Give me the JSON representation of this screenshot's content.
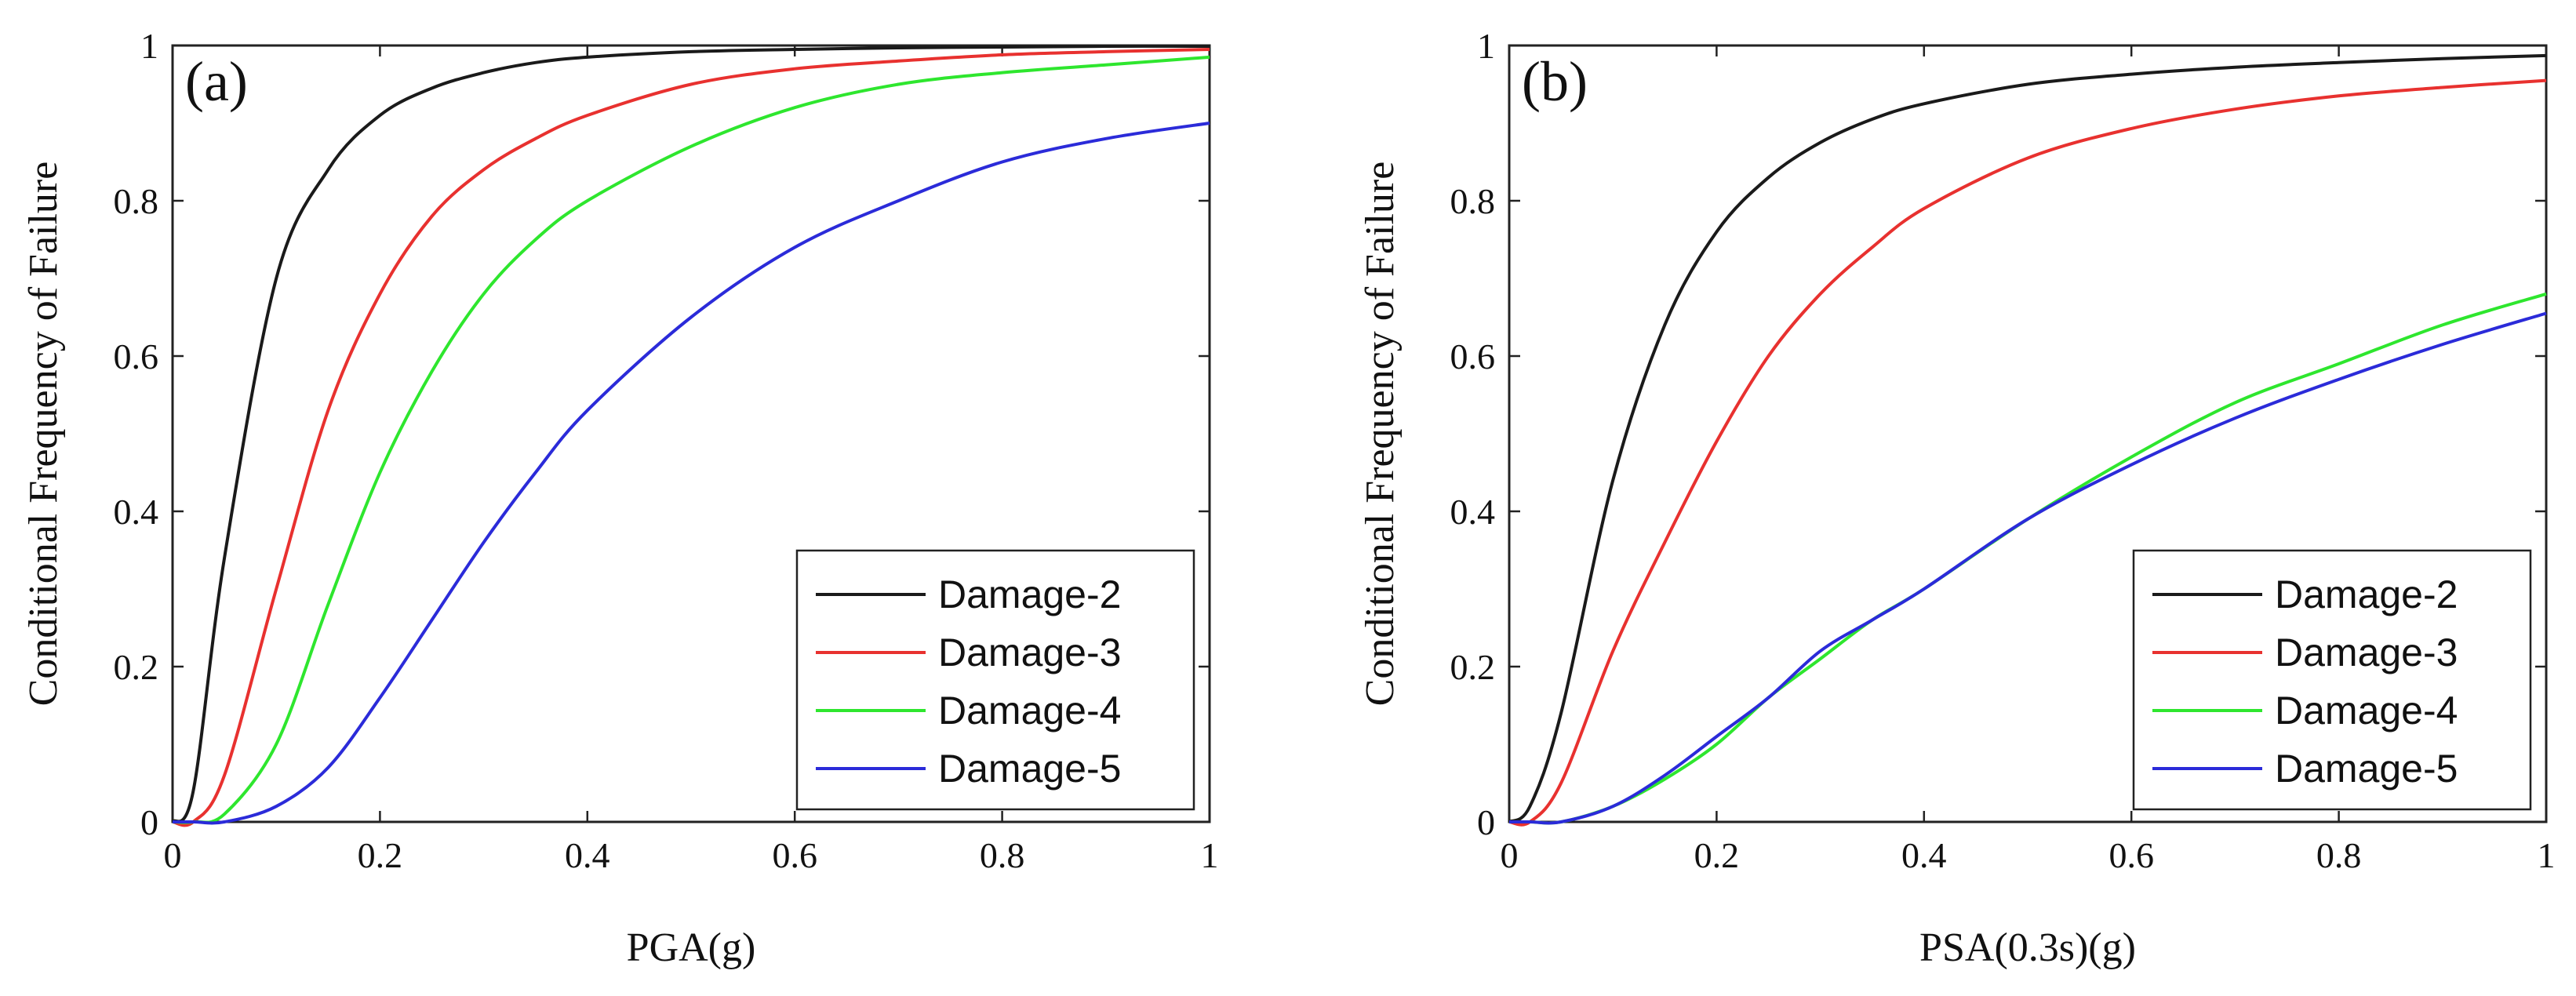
{
  "chart_data": [
    {
      "type": "line",
      "panel_label": "(a)",
      "xlabel": "PGA(g)",
      "ylabel": "Conditional Frequency of Failure",
      "xlim": [
        0,
        1
      ],
      "ylim": [
        0,
        1
      ],
      "xticks": [
        "0",
        "0.2",
        "0.4",
        "0.6",
        "0.8",
        "1"
      ],
      "yticks": [
        "0",
        "0.2",
        "0.4",
        "0.6",
        "0.8",
        "1"
      ],
      "legend_position": "bottom-right",
      "x": [
        0.02,
        0.05,
        0.1,
        0.15,
        0.2,
        0.25,
        0.3,
        0.35,
        0.4,
        0.5,
        0.6,
        0.7,
        0.8,
        0.9,
        1.0
      ],
      "series": [
        {
          "name": "Damage-2",
          "color": "#1a1a1a",
          "values": [
            0.04,
            0.34,
            0.7,
            0.84,
            0.91,
            0.945,
            0.965,
            0.978,
            0.985,
            0.992,
            0.995,
            0.997,
            0.998,
            0.999,
            0.999
          ]
        },
        {
          "name": "Damage-3",
          "color": "#e8312f",
          "values": [
            0.0,
            0.06,
            0.3,
            0.53,
            0.68,
            0.78,
            0.84,
            0.88,
            0.91,
            0.95,
            0.97,
            0.98,
            0.988,
            0.992,
            0.995
          ]
        },
        {
          "name": "Damage-4",
          "color": "#2ee62e",
          "values": [
            0.0,
            0.01,
            0.1,
            0.28,
            0.45,
            0.58,
            0.68,
            0.75,
            0.8,
            0.87,
            0.92,
            0.95,
            0.965,
            0.975,
            0.985
          ]
        },
        {
          "name": "Damage-5",
          "color": "#2b2bd9",
          "values": [
            0.0,
            0.0,
            0.02,
            0.07,
            0.16,
            0.26,
            0.36,
            0.45,
            0.53,
            0.65,
            0.74,
            0.8,
            0.85,
            0.88,
            0.9
          ]
        }
      ]
    },
    {
      "type": "line",
      "panel_label": "(b)",
      "xlabel": "PSA(0.3s)(g)",
      "ylabel": "Conditional Frequency of Failure",
      "xlim": [
        0,
        1
      ],
      "ylim": [
        0,
        1
      ],
      "xticks": [
        "0",
        "0.2",
        "0.4",
        "0.6",
        "0.8",
        "1"
      ],
      "yticks": [
        "0",
        "0.2",
        "0.4",
        "0.6",
        "0.8",
        "1"
      ],
      "legend_position": "bottom-right",
      "x": [
        0.02,
        0.05,
        0.1,
        0.15,
        0.2,
        0.25,
        0.3,
        0.35,
        0.4,
        0.5,
        0.6,
        0.7,
        0.8,
        0.9,
        1.0
      ],
      "series": [
        {
          "name": "Damage-2",
          "color": "#1a1a1a",
          "values": [
            0.02,
            0.14,
            0.44,
            0.64,
            0.76,
            0.83,
            0.875,
            0.905,
            0.925,
            0.95,
            0.963,
            0.972,
            0.978,
            0.983,
            0.987
          ]
        },
        {
          "name": "Damage-3",
          "color": "#e8312f",
          "values": [
            0.0,
            0.05,
            0.22,
            0.36,
            0.49,
            0.6,
            0.68,
            0.74,
            0.79,
            0.855,
            0.893,
            0.918,
            0.935,
            0.946,
            0.955
          ]
        },
        {
          "name": "Damage-4",
          "color": "#2ee62e",
          "values": [
            0.0,
            0.0,
            0.02,
            0.055,
            0.1,
            0.16,
            0.21,
            0.26,
            0.3,
            0.39,
            0.47,
            0.54,
            0.59,
            0.64,
            0.68
          ]
        },
        {
          "name": "Damage-5",
          "color": "#2b2bd9",
          "values": [
            0.0,
            0.0,
            0.02,
            0.06,
            0.11,
            0.16,
            0.22,
            0.26,
            0.3,
            0.39,
            0.46,
            0.52,
            0.57,
            0.615,
            0.655
          ]
        }
      ]
    }
  ]
}
